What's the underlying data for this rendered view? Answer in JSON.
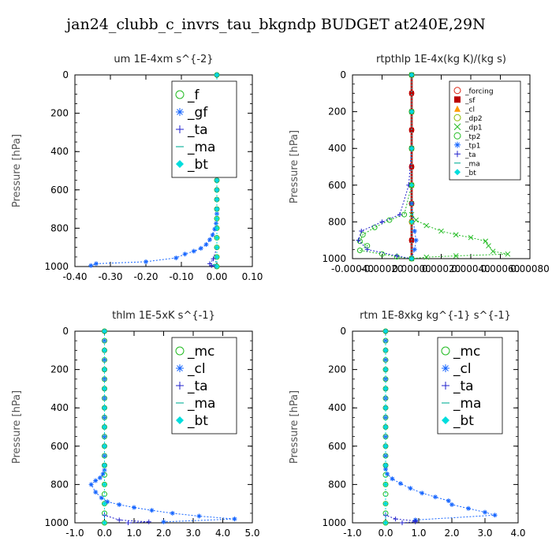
{
  "page_title": "jan24_clubb_c_invrs_tau_bkgndp  BUDGET at240E,29N",
  "colors": {
    "green": "#22bb22",
    "blue": "#1565ff",
    "red": "#dd2211",
    "darkred": "#bb0000",
    "orange": "#ff9900",
    "purple": "#2222cc",
    "cyan": "#00dddd",
    "teal": "#19b6a0",
    "navy": "#0a2a66",
    "olive": "#88bb00"
  },
  "chart_data": [
    {
      "id": "um",
      "type": "line",
      "title": "um   1E-4xm s^{-2}",
      "ylabel": "Pressure [hPa]",
      "xlim": [
        -0.4,
        0.1
      ],
      "ylim": [
        1000,
        0
      ],
      "xticks": [
        -0.4,
        -0.3,
        -0.2,
        -0.1,
        0.0,
        0.1
      ],
      "xtick_labels": [
        "-0.40",
        "-0.30",
        "-0.20",
        "-0.10",
        "0.00",
        "0.10"
      ],
      "yticks": [
        0,
        200,
        400,
        600,
        800,
        1000
      ],
      "ytick_labels": [
        "0",
        "200",
        "400",
        "600",
        "800",
        "1000"
      ],
      "legend": {
        "position": "top-right",
        "size": "large"
      },
      "series": [
        {
          "name": "_f",
          "color": "green",
          "marker": "o",
          "style": "dotted",
          "x": [
            0,
            0,
            0,
            0,
            0,
            0,
            0,
            0,
            0,
            0,
            0,
            0,
            0,
            0,
            0,
            0,
            0,
            0,
            0,
            0,
            0
          ],
          "y": [
            0,
            50,
            100,
            150,
            200,
            250,
            300,
            350,
            400,
            450,
            500,
            550,
            600,
            650,
            700,
            750,
            800,
            850,
            900,
            950,
            1000
          ]
        },
        {
          "name": "_gf",
          "color": "blue",
          "marker": "*",
          "style": "dotted",
          "x": [
            0,
            0,
            0,
            0,
            0,
            0,
            0,
            0,
            0,
            0,
            0,
            0,
            0,
            0,
            0,
            0,
            -0.002,
            -0.006,
            -0.012,
            -0.02,
            -0.03,
            -0.045,
            -0.065,
            -0.09,
            -0.115,
            -0.2,
            -0.34,
            -0.355
          ],
          "y": [
            0,
            50,
            100,
            150,
            200,
            250,
            300,
            350,
            400,
            450,
            500,
            550,
            600,
            650,
            700,
            725,
            775,
            805,
            835,
            860,
            885,
            905,
            920,
            935,
            955,
            975,
            985,
            995
          ]
        },
        {
          "name": "_ta",
          "color": "purple",
          "marker": "+",
          "style": "dotted",
          "x": [
            0,
            0,
            0,
            -0.01,
            -0.02,
            -0.015,
            -0.005,
            0
          ],
          "y": [
            0,
            500,
            900,
            960,
            985,
            995,
            998,
            1000
          ]
        },
        {
          "name": "_ma",
          "color": "teal",
          "marker": "-",
          "style": "dotted",
          "x": [
            0,
            0,
            0,
            -0.005,
            0
          ],
          "y": [
            0,
            500,
            950,
            990,
            1000
          ]
        },
        {
          "name": "_bt",
          "color": "cyan",
          "marker": "diamond",
          "style": "dotted",
          "x": [
            0,
            0,
            0,
            0,
            0,
            0,
            0,
            0,
            0,
            0,
            0,
            0,
            0,
            0,
            0,
            0,
            0,
            0,
            0,
            0,
            0
          ],
          "y": [
            0,
            50,
            100,
            150,
            200,
            250,
            300,
            350,
            400,
            450,
            500,
            550,
            600,
            650,
            700,
            750,
            800,
            850,
            900,
            950,
            1000
          ]
        }
      ]
    },
    {
      "id": "rtpthlp",
      "type": "line",
      "title": "rtpthlp   1E-4x(kg K)/(kg s)",
      "ylabel": "Pressure [hPa]",
      "xlim": [
        -0.0004,
        0.0008
      ],
      "ylim": [
        1000,
        0
      ],
      "xticks": [
        -0.0004,
        -0.0002,
        0.0,
        0.0002,
        0.0004,
        0.0006,
        0.0008
      ],
      "xtick_labels": [
        "-0.00040",
        "-0.00020",
        "0.00000",
        "0.00020",
        "0.00040",
        "0.00060",
        "0.00080"
      ],
      "yticks": [
        0,
        200,
        400,
        600,
        800,
        1000
      ],
      "ytick_labels": [
        "0",
        "200",
        "400",
        "600",
        "800",
        "1000"
      ],
      "legend": {
        "position": "top-right",
        "size": "small"
      },
      "series": [
        {
          "name": "_forcing",
          "color": "red",
          "marker": "o",
          "style": "solid",
          "x": [
            0,
            0,
            0,
            0,
            0,
            0,
            0,
            0,
            0,
            0,
            0
          ],
          "y": [
            0,
            100,
            200,
            300,
            400,
            500,
            600,
            700,
            800,
            900,
            1000
          ]
        },
        {
          "name": "_sf",
          "color": "darkred",
          "marker": "square",
          "style": "solid",
          "x": [
            0,
            0,
            0,
            0,
            0,
            0,
            0,
            0,
            0,
            0,
            0
          ],
          "y": [
            0,
            100,
            200,
            300,
            400,
            500,
            600,
            700,
            800,
            900,
            1000
          ]
        },
        {
          "name": "_cl",
          "color": "orange",
          "marker": "triangle",
          "style": "dotted",
          "x": [
            0,
            0,
            0,
            0,
            0,
            0
          ],
          "y": [
            0,
            200,
            400,
            600,
            800,
            1000
          ]
        },
        {
          "name": "_dp2",
          "color": "olive",
          "marker": "o",
          "style": "dotted",
          "x": [
            0,
            0,
            0,
            0,
            0,
            0
          ],
          "y": [
            0,
            200,
            400,
            600,
            800,
            1000
          ]
        },
        {
          "name": "_dp1",
          "color": "green",
          "marker": "x",
          "style": "dotted",
          "x": [
            0,
            0,
            0,
            0,
            0,
            0,
            3e-05,
            0.0001,
            0.0002,
            0.0003,
            0.0004,
            0.0005,
            0.00052,
            0.00055,
            0.00065,
            0.0003,
            0.0001,
            0
          ],
          "y": [
            0,
            200,
            400,
            600,
            700,
            760,
            790,
            820,
            850,
            870,
            885,
            905,
            930,
            960,
            975,
            985,
            992,
            1000
          ]
        },
        {
          "name": "_tp2",
          "color": "green",
          "marker": "o",
          "style": "dotted",
          "x": [
            0,
            0,
            0,
            0,
            -5e-05,
            -0.00015,
            -0.00025,
            -0.00033,
            -0.00035,
            -0.0003,
            -0.00035,
            -0.0002,
            -0.0001,
            0
          ],
          "y": [
            0,
            200,
            400,
            600,
            760,
            790,
            830,
            870,
            905,
            930,
            955,
            975,
            990,
            1000
          ]
        },
        {
          "name": "_tp1",
          "color": "blue",
          "marker": "*",
          "style": "dotted",
          "x": [
            0,
            0,
            0,
            0,
            2e-05,
            3e-05,
            2e-05,
            0
          ],
          "y": [
            0,
            200,
            400,
            700,
            850,
            900,
            950,
            1000
          ]
        },
        {
          "name": "_ta",
          "color": "purple",
          "marker": "+",
          "style": "dotted",
          "x": [
            0,
            0,
            0,
            -2e-05,
            -8e-05,
            -0.0002,
            -0.00034,
            -0.00036,
            -0.0003,
            -0.0001,
            0
          ],
          "y": [
            0,
            200,
            400,
            600,
            760,
            800,
            850,
            900,
            950,
            985,
            1000
          ]
        },
        {
          "name": "_ma",
          "color": "teal",
          "marker": "-",
          "style": "dotted",
          "x": [
            0,
            0,
            0,
            0,
            0,
            0
          ],
          "y": [
            0,
            200,
            400,
            600,
            800,
            1000
          ]
        },
        {
          "name": "_bt",
          "color": "cyan",
          "marker": "diamond",
          "style": "dotted",
          "x": [
            0,
            0,
            0,
            0,
            0,
            0
          ],
          "y": [
            0,
            200,
            400,
            600,
            800,
            1000
          ]
        }
      ]
    },
    {
      "id": "thlm",
      "type": "line",
      "title": "thlm   1E-5xK s^{-1}",
      "ylabel": "Pressure [hPa]",
      "xlim": [
        -1.0,
        5.0
      ],
      "ylim": [
        1000,
        0
      ],
      "xticks": [
        -1,
        0,
        1,
        2,
        3,
        4,
        5
      ],
      "xtick_labels": [
        "-1.0",
        "0.0",
        "1.0",
        "2.0",
        "3.0",
        "4.0",
        "5.0"
      ],
      "yticks": [
        0,
        200,
        400,
        600,
        800,
        1000
      ],
      "ytick_labels": [
        "0",
        "200",
        "400",
        "600",
        "800",
        "1000"
      ],
      "legend": {
        "position": "top-right",
        "size": "large"
      },
      "series": [
        {
          "name": "_mc",
          "color": "green",
          "marker": "o",
          "style": "dotted",
          "x": [
            0,
            0,
            0,
            0,
            0,
            0,
            0,
            0,
            0,
            0,
            0,
            0,
            0,
            0,
            0,
            0,
            0,
            0,
            0,
            0,
            0
          ],
          "y": [
            0,
            50,
            100,
            150,
            200,
            250,
            300,
            350,
            400,
            450,
            500,
            550,
            600,
            650,
            700,
            750,
            800,
            850,
            900,
            950,
            1000
          ]
        },
        {
          "name": "_cl",
          "color": "blue",
          "marker": "*",
          "style": "dotted",
          "x": [
            0,
            0,
            0,
            0,
            0,
            0,
            0,
            0,
            0,
            0,
            0,
            0,
            0,
            0,
            0,
            0,
            -0.05,
            -0.15,
            -0.3,
            -0.45,
            -0.3,
            -0.1,
            0.1,
            0.5,
            1.0,
            1.6,
            2.3,
            3.2,
            4.4,
            2.0
          ],
          "y": [
            0,
            50,
            100,
            150,
            200,
            250,
            300,
            350,
            400,
            450,
            500,
            550,
            600,
            650,
            700,
            725,
            745,
            765,
            780,
            800,
            840,
            870,
            890,
            905,
            920,
            935,
            950,
            965,
            980,
            995
          ]
        },
        {
          "name": "_ta",
          "color": "purple",
          "marker": "+",
          "style": "dotted",
          "x": [
            0,
            0,
            0,
            0,
            0.5,
            1.5,
            0.8
          ],
          "y": [
            0,
            500,
            900,
            960,
            985,
            995,
            1000
          ]
        },
        {
          "name": "_ma",
          "color": "teal",
          "marker": "-",
          "style": "dotted",
          "x": [
            0,
            0,
            0,
            0
          ],
          "y": [
            0,
            500,
            900,
            1000
          ]
        },
        {
          "name": "_bt",
          "color": "cyan",
          "marker": "diamond",
          "style": "dotted",
          "x": [
            0,
            0,
            0,
            0,
            0,
            0,
            0,
            0,
            0,
            0,
            0
          ],
          "y": [
            0,
            100,
            200,
            300,
            400,
            500,
            600,
            700,
            800,
            900,
            1000
          ]
        }
      ]
    },
    {
      "id": "rtm",
      "type": "line",
      "title": "rtm   1E-8xkg kg^{-1} s^{-1}",
      "ylabel": "Pressure [hPa]",
      "xlim": [
        -1.0,
        4.0
      ],
      "ylim": [
        1000,
        0
      ],
      "xticks": [
        -1,
        0,
        1,
        2,
        3,
        4
      ],
      "xtick_labels": [
        "-1.0",
        "0.0",
        "1.0",
        "2.0",
        "3.0",
        "4.0"
      ],
      "yticks": [
        0,
        200,
        400,
        600,
        800,
        1000
      ],
      "ytick_labels": [
        "0",
        "200",
        "400",
        "600",
        "800",
        "1000"
      ],
      "legend": {
        "position": "top-right",
        "size": "large"
      },
      "series": [
        {
          "name": "_mc",
          "color": "green",
          "marker": "o",
          "style": "dotted",
          "x": [
            0,
            0,
            0,
            0,
            0,
            0,
            0,
            0,
            0,
            0,
            0,
            0,
            0,
            0,
            0,
            0,
            0,
            0,
            0,
            0,
            0
          ],
          "y": [
            0,
            50,
            100,
            150,
            200,
            250,
            300,
            350,
            400,
            450,
            500,
            550,
            600,
            650,
            700,
            750,
            800,
            850,
            900,
            950,
            1000
          ]
        },
        {
          "name": "_cl",
          "color": "blue",
          "marker": "*",
          "style": "dotted",
          "x": [
            0,
            0,
            0,
            0,
            0,
            0,
            0,
            0,
            0,
            0,
            0,
            0,
            0,
            0,
            0,
            0,
            0.05,
            0.2,
            0.45,
            0.75,
            1.1,
            1.5,
            1.9,
            2.0,
            2.5,
            3.0,
            3.3,
            0.9
          ],
          "y": [
            0,
            50,
            100,
            150,
            200,
            250,
            300,
            350,
            400,
            450,
            500,
            550,
            600,
            650,
            700,
            720,
            745,
            770,
            795,
            820,
            845,
            865,
            885,
            905,
            925,
            945,
            960,
            985
          ]
        },
        {
          "name": "_ta",
          "color": "purple",
          "marker": "+",
          "style": "dotted",
          "x": [
            0,
            0,
            0,
            0,
            0.3,
            0.9,
            0.9,
            0.5
          ],
          "y": [
            0,
            500,
            900,
            960,
            980,
            990,
            995,
            1000
          ]
        },
        {
          "name": "_ma",
          "color": "teal",
          "marker": "-",
          "style": "dotted",
          "x": [
            0,
            0,
            0,
            0
          ],
          "y": [
            0,
            500,
            900,
            1000
          ]
        },
        {
          "name": "_bt",
          "color": "cyan",
          "marker": "diamond",
          "style": "dotted",
          "x": [
            0,
            0,
            0,
            0,
            0,
            0,
            0,
            0,
            0,
            0,
            0
          ],
          "y": [
            0,
            100,
            200,
            300,
            400,
            500,
            600,
            700,
            800,
            900,
            1000
          ]
        }
      ]
    }
  ]
}
